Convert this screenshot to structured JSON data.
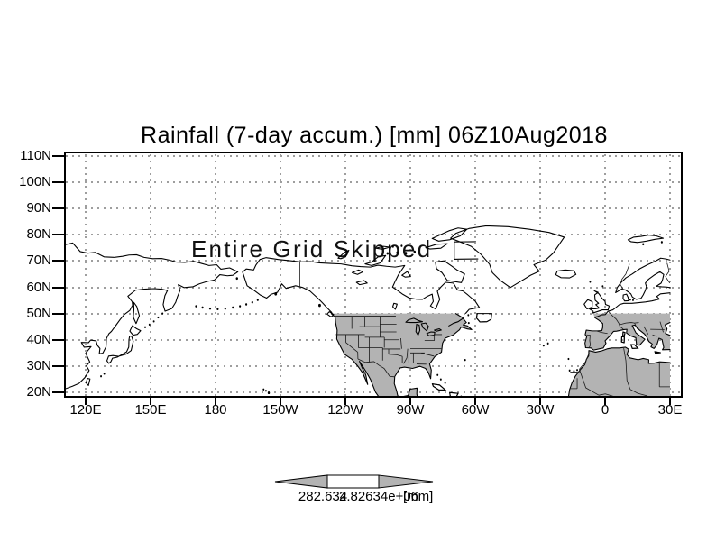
{
  "figure": {
    "title": "Rainfall (7-day accum.) [mm] 06Z10Aug2018",
    "overlay_message": "Entire Grid Skipped",
    "y_axis": {
      "labels": [
        "110N",
        "100N",
        "90N",
        "80N",
        "70N",
        "60N",
        "50N",
        "40N",
        "30N",
        "20N"
      ]
    },
    "x_axis": {
      "labels": [
        "120E",
        "150E",
        "180",
        "150W",
        "120W",
        "90W",
        "60W",
        "30W",
        "0",
        "30E"
      ]
    },
    "colorbar": {
      "left_label": "282.634",
      "right_label": "2.82634e+06",
      "units_label": "[mm]",
      "arrow_fill": "#b3b3b3",
      "box_fill": "#ffffff"
    },
    "colors": {
      "background": "#ffffff",
      "land_shade": "#b3b3b3",
      "grid": "#9e9e9e",
      "line": "#000000"
    }
  }
}
